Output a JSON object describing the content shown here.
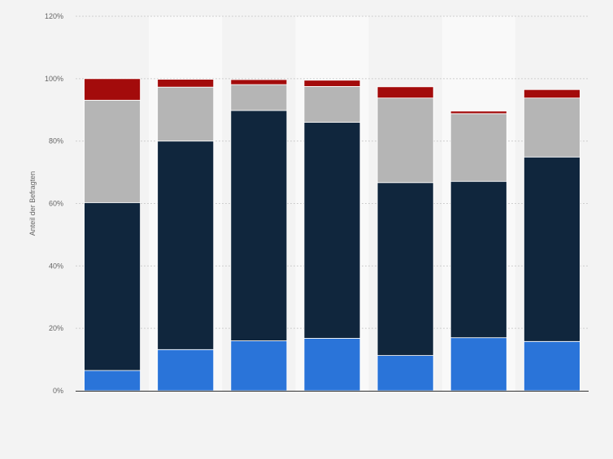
{
  "chart_data": {
    "type": "bar",
    "stacked": true,
    "title": "",
    "xlabel": "",
    "ylabel": "Anteil der Befragten",
    "ylim": [
      0,
      120
    ],
    "yticks": [
      0,
      20,
      40,
      60,
      80,
      100,
      120
    ],
    "ytick_labels": [
      "0%",
      "20%",
      "40%",
      "60%",
      "80%",
      "100%",
      "120%"
    ],
    "grid": true,
    "legend": "none",
    "categories": [
      "",
      "",
      "",
      "",
      "",
      "",
      ""
    ],
    "series": [
      {
        "color": "#2a74d9",
        "values": [
          6.5,
          13.2,
          16,
          16.8,
          11.3,
          17,
          15.8
        ]
      },
      {
        "color": "#10263d",
        "values": [
          53.8,
          66.8,
          73.8,
          69.2,
          55.4,
          50.1,
          59.1
        ]
      },
      {
        "color": "#b5b5b5",
        "values": [
          32.8,
          17.3,
          8.3,
          11.5,
          27.1,
          21.7,
          18.9
        ]
      },
      {
        "color": "#a30b0b",
        "values": [
          6.9,
          2.5,
          1.6,
          2.0,
          3.6,
          0.8,
          2.7
        ]
      }
    ]
  }
}
